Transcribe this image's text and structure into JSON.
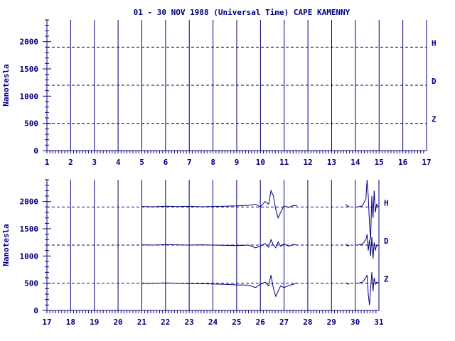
{
  "colors": {
    "axis": "#00007f",
    "background": "#ffffff",
    "trace": "#00007f"
  },
  "chart_data": {
    "type": "line",
    "title": "01 - 30 NOV 1988 (Universal Time) CAPE KAMENNY",
    "ylabel": "Nanotesla",
    "ylim": [
      0,
      2400
    ],
    "yticks": [
      "0",
      "500",
      "1000",
      "1500",
      "2000"
    ],
    "grid": "vertical lines at each day",
    "panels": [
      {
        "name": "top",
        "xlim": [
          1,
          17
        ],
        "xticks": [
          "1",
          "2",
          "3",
          "4",
          "5",
          "6",
          "7",
          "8",
          "9",
          "10",
          "11",
          "12",
          "13",
          "14",
          "15",
          "16",
          "17"
        ],
        "baselines": [
          {
            "component": "H",
            "value": 1900
          },
          {
            "component": "D",
            "value": 1200
          },
          {
            "component": "Z",
            "value": 500
          }
        ],
        "series": []
      },
      {
        "name": "bottom",
        "xlim": [
          17,
          31
        ],
        "xticks": [
          "17",
          "18",
          "19",
          "20",
          "21",
          "22",
          "23",
          "24",
          "25",
          "26",
          "27",
          "28",
          "29",
          "30",
          "31"
        ],
        "baselines": [
          {
            "component": "H",
            "value": 1900
          },
          {
            "component": "D",
            "value": 1200
          },
          {
            "component": "Z",
            "value": 500
          }
        ],
        "series": [
          {
            "name": "H",
            "segments": [
              [
                [
                  21.0,
                  1910
                ],
                [
                  21.5,
                  1905
                ],
                [
                  22.0,
                  1915
                ],
                [
                  22.5,
                  1908
                ],
                [
                  23.0,
                  1912
                ],
                [
                  23.5,
                  1905
                ],
                [
                  24.0,
                  1910
                ],
                [
                  24.5,
                  1915
                ],
                [
                  25.0,
                  1920
                ],
                [
                  25.5,
                  1930
                ],
                [
                  25.8,
                  1950
                ],
                [
                  26.0,
                  1900
                ],
                [
                  26.2,
                  2000
                ],
                [
                  26.35,
                  1950
                ],
                [
                  26.45,
                  2200
                ],
                [
                  26.55,
                  2100
                ],
                [
                  26.65,
                  1850
                ],
                [
                  26.75,
                  1700
                ],
                [
                  26.85,
                  1800
                ],
                [
                  27.0,
                  1920
                ],
                [
                  27.2,
                  1890
                ],
                [
                  27.4,
                  1930
                ],
                [
                  27.55,
                  1920
                ]
              ],
              [
                [
                  29.6,
                  1950
                ],
                [
                  29.7,
                  1900
                ],
                [
                  29.75,
                  1920
                ]
              ],
              [
                [
                  30.1,
                  1900
                ],
                [
                  30.3,
                  1920
                ],
                [
                  30.45,
                  2050
                ],
                [
                  30.5,
                  2400
                ],
                [
                  30.55,
                  2100
                ],
                [
                  30.6,
                  1600
                ],
                [
                  30.65,
                  1300
                ],
                [
                  30.7,
                  2100
                ],
                [
                  30.75,
                  1700
                ],
                [
                  30.8,
                  2200
                ],
                [
                  30.85,
                  1800
                ],
                [
                  30.9,
                  1950
                ],
                [
                  31.0,
                  1900
                ]
              ]
            ]
          },
          {
            "name": "D",
            "segments": [
              [
                [
                  21.0,
                  1205
                ],
                [
                  21.5,
                  1200
                ],
                [
                  22.0,
                  1210
                ],
                [
                  22.5,
                  1205
                ],
                [
                  23.0,
                  1200
                ],
                [
                  23.5,
                  1205
                ],
                [
                  24.0,
                  1200
                ],
                [
                  24.5,
                  1195
                ],
                [
                  25.0,
                  1190
                ],
                [
                  25.5,
                  1200
                ],
                [
                  25.8,
                  1150
                ],
                [
                  26.0,
                  1180
                ],
                [
                  26.2,
                  1230
                ],
                [
                  26.35,
                  1160
                ],
                [
                  26.45,
                  1300
                ],
                [
                  26.55,
                  1200
                ],
                [
                  26.65,
                  1150
                ],
                [
                  26.75,
                  1260
                ],
                [
                  26.85,
                  1180
                ],
                [
                  27.0,
                  1220
                ],
                [
                  27.2,
                  1180
                ],
                [
                  27.4,
                  1210
                ],
                [
                  27.55,
                  1200
                ]
              ],
              [
                [
                  29.6,
                  1220
                ],
                [
                  29.7,
                  1180
                ],
                [
                  29.75,
                  1200
                ]
              ],
              [
                [
                  30.1,
                  1200
                ],
                [
                  30.3,
                  1220
                ],
                [
                  30.45,
                  1300
                ],
                [
                  30.5,
                  1400
                ],
                [
                  30.55,
                  1100
                ],
                [
                  30.6,
                  1300
                ],
                [
                  30.65,
                  1000
                ],
                [
                  30.7,
                  1350
                ],
                [
                  30.75,
                  950
                ],
                [
                  30.8,
                  1250
                ],
                [
                  30.85,
                  1100
                ],
                [
                  30.9,
                  1200
                ],
                [
                  31.0,
                  1190
                ]
              ]
            ]
          },
          {
            "name": "Z",
            "segments": [
              [
                [
                  21.0,
                  495
                ],
                [
                  21.5,
                  500
                ],
                [
                  22.0,
                  505
                ],
                [
                  22.5,
                  498
                ],
                [
                  23.0,
                  495
                ],
                [
                  23.5,
                  490
                ],
                [
                  24.0,
                  485
                ],
                [
                  24.5,
                  480
                ],
                [
                  25.0,
                  470
                ],
                [
                  25.5,
                  465
                ],
                [
                  25.8,
                  420
                ],
                [
                  26.0,
                  480
                ],
                [
                  26.2,
                  520
                ],
                [
                  26.35,
                  450
                ],
                [
                  26.45,
                  650
                ],
                [
                  26.55,
                  400
                ],
                [
                  26.65,
                  260
                ],
                [
                  26.75,
                  350
                ],
                [
                  26.85,
                  450
                ],
                [
                  27.0,
                  420
                ],
                [
                  27.2,
                  460
                ],
                [
                  27.4,
                  480
                ],
                [
                  27.55,
                  500
                ]
              ],
              [
                [
                  29.6,
                  510
                ],
                [
                  29.7,
                  480
                ],
                [
                  29.75,
                  495
                ]
              ],
              [
                [
                  30.1,
                  500
                ],
                [
                  30.3,
                  520
                ],
                [
                  30.45,
                  600
                ],
                [
                  30.5,
                  650
                ],
                [
                  30.55,
                  300
                ],
                [
                  30.6,
                  100
                ],
                [
                  30.65,
                  400
                ],
                [
                  30.7,
                  700
                ],
                [
                  30.75,
                  350
                ],
                [
                  30.8,
                  600
                ],
                [
                  30.85,
                  480
                ],
                [
                  30.9,
                  520
                ],
                [
                  31.0,
                  500
                ]
              ]
            ]
          }
        ]
      }
    ]
  }
}
